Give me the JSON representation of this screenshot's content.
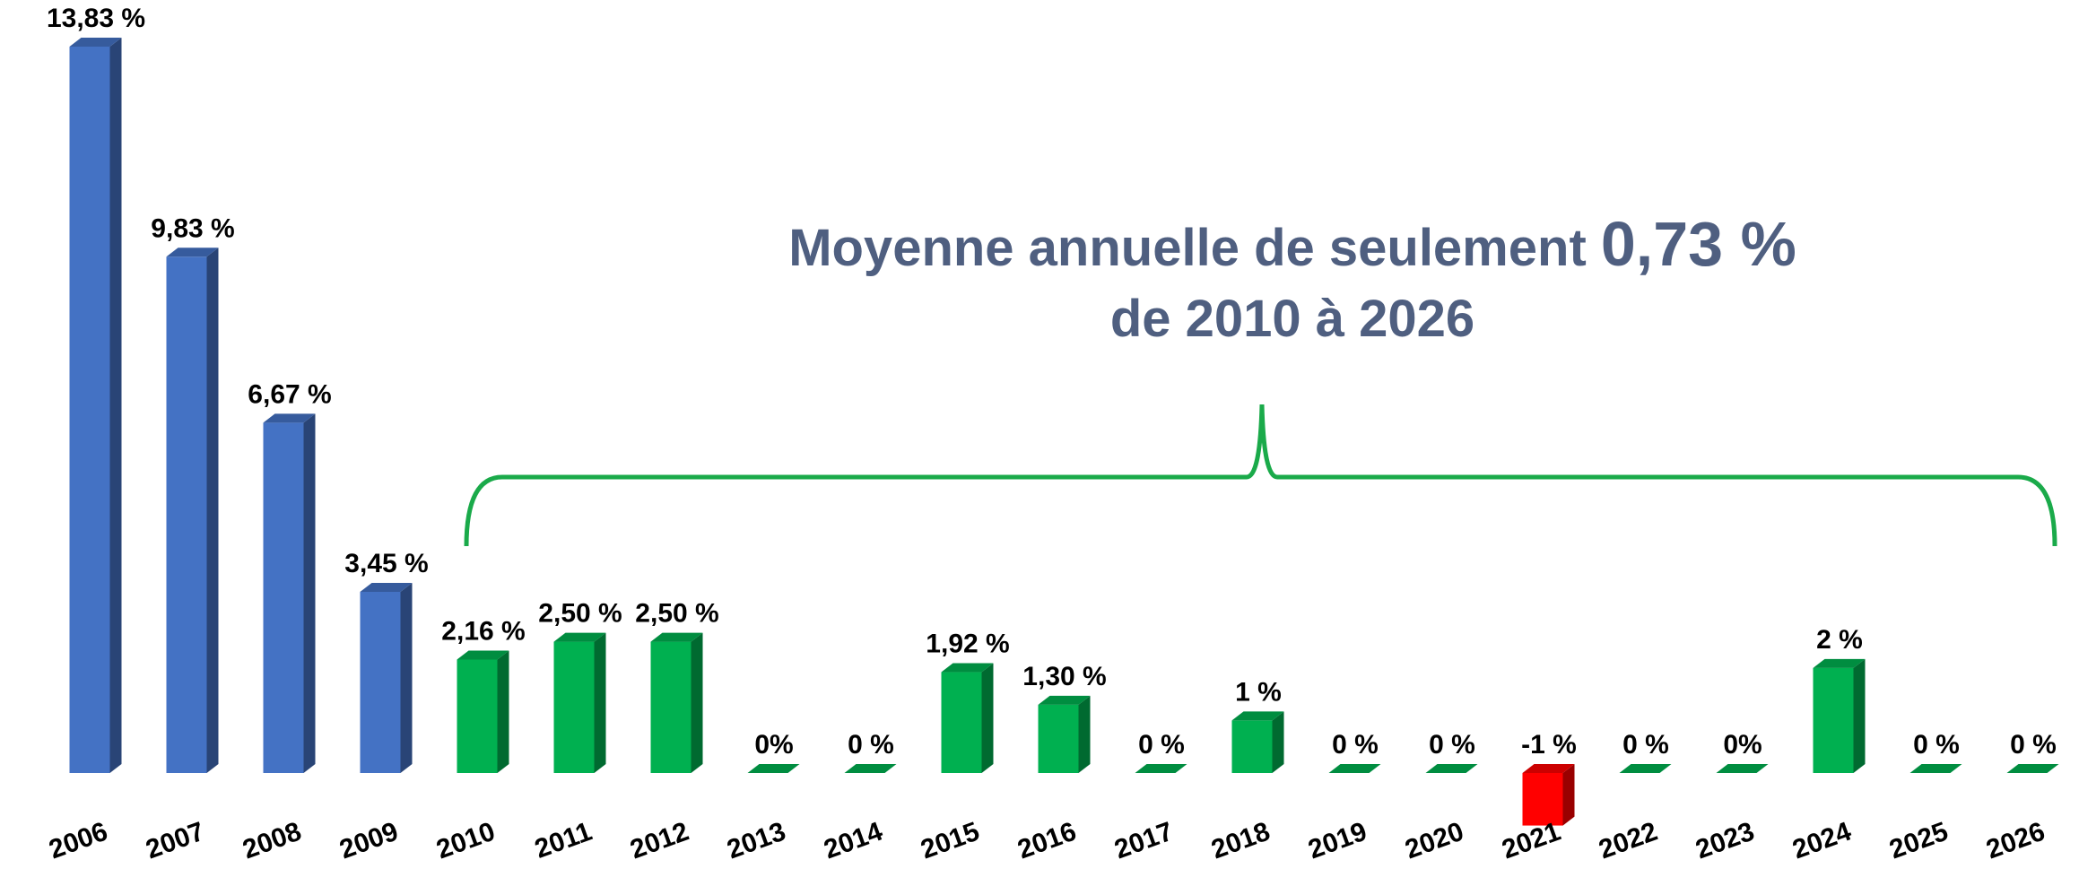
{
  "chart_data": {
    "type": "bar",
    "categories": [
      "2006",
      "2007",
      "2008",
      "2009",
      "2010",
      "2011",
      "2012",
      "2013",
      "2014",
      "2015",
      "2016",
      "2017",
      "2018",
      "2019",
      "2020",
      "2021",
      "2022",
      "2023",
      "2024",
      "2025",
      "2026"
    ],
    "values": [
      13.83,
      9.83,
      6.67,
      3.45,
      2.16,
      2.5,
      2.5,
      0,
      0,
      1.92,
      1.3,
      0,
      1,
      0,
      0,
      -1,
      0,
      0,
      2,
      0,
      0
    ],
    "value_labels": [
      "13,83 %",
      "9,83 %",
      "6,67 %",
      "3,45 %",
      "2,16 %",
      "2,50 %",
      "2,50 %",
      "0%",
      "0 %",
      "1,92 %",
      "1,30 %",
      "0 %",
      "1 %",
      "0 %",
      "0 %",
      "-1 %",
      "0 %",
      "0%",
      "2 %",
      "0 %",
      "0 %"
    ],
    "colors": [
      "#4472c4",
      "#4472c4",
      "#4472c4",
      "#4472c4",
      "#00b050",
      "#00b050",
      "#00b050",
      "#00b050",
      "#00b050",
      "#00b050",
      "#00b050",
      "#00b050",
      "#00b050",
      "#00b050",
      "#00b050",
      "#ff0000",
      "#00b050",
      "#00b050",
      "#00b050",
      "#00b050",
      "#00b050"
    ],
    "annotation": {
      "text": "Moyenne annuelle de seulement ",
      "highlight": "0,73 %",
      "line2": "de 2010 à 2026"
    }
  }
}
